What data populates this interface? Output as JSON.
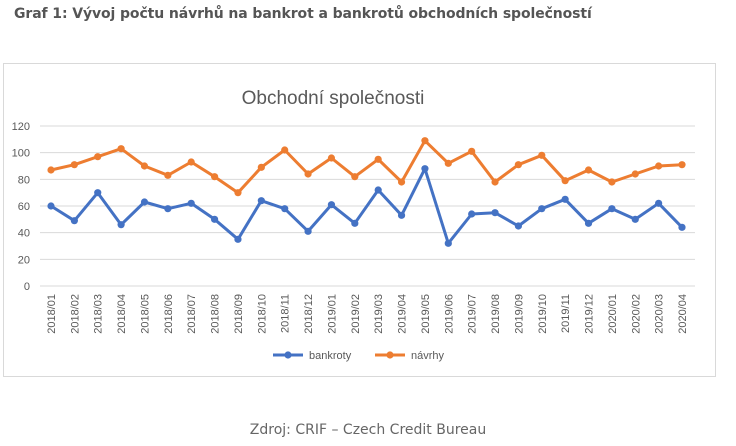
{
  "page": {
    "heading": "Graf 1: Vývoj počtu návrhů na bankrot a bankrotů obchodních společností",
    "source": "Zdroj: CRIF – Czech Credit Bureau"
  },
  "chart_data": {
    "type": "line",
    "title": "Obchodní společnosti",
    "xlabel": "",
    "ylabel": "",
    "ylim": [
      0,
      120
    ],
    "yticks": [
      0,
      20,
      40,
      60,
      80,
      100,
      120
    ],
    "grid": true,
    "legend": "bottom",
    "categories": [
      "2018/01",
      "2018/02",
      "2018/03",
      "2018/04",
      "2018/05",
      "2018/06",
      "2018/07",
      "2018/08",
      "2018/09",
      "2018/10",
      "2018/11",
      "2018/12",
      "2019/01",
      "2019/02",
      "2019/03",
      "2019/04",
      "2019/05",
      "2019/06",
      "2019/07",
      "2019/08",
      "2019/09",
      "2019/10",
      "2019/11",
      "2019/12",
      "2020/01",
      "2020/02",
      "2020/03",
      "2020/04"
    ],
    "series": [
      {
        "name": "bankroty",
        "color": "#4472c4",
        "values": [
          60,
          49,
          70,
          46,
          63,
          58,
          62,
          50,
          35,
          64,
          58,
          41,
          61,
          47,
          72,
          53,
          88,
          32,
          54,
          55,
          45,
          58,
          65,
          47,
          58,
          50,
          62,
          44
        ]
      },
      {
        "name": "návrhy",
        "color": "#ed7d31",
        "values": [
          87,
          91,
          97,
          103,
          90,
          83,
          93,
          82,
          70,
          89,
          102,
          84,
          96,
          82,
          95,
          78,
          109,
          92,
          101,
          78,
          91,
          98,
          79,
          87,
          78,
          84,
          90,
          91
        ]
      }
    ]
  }
}
